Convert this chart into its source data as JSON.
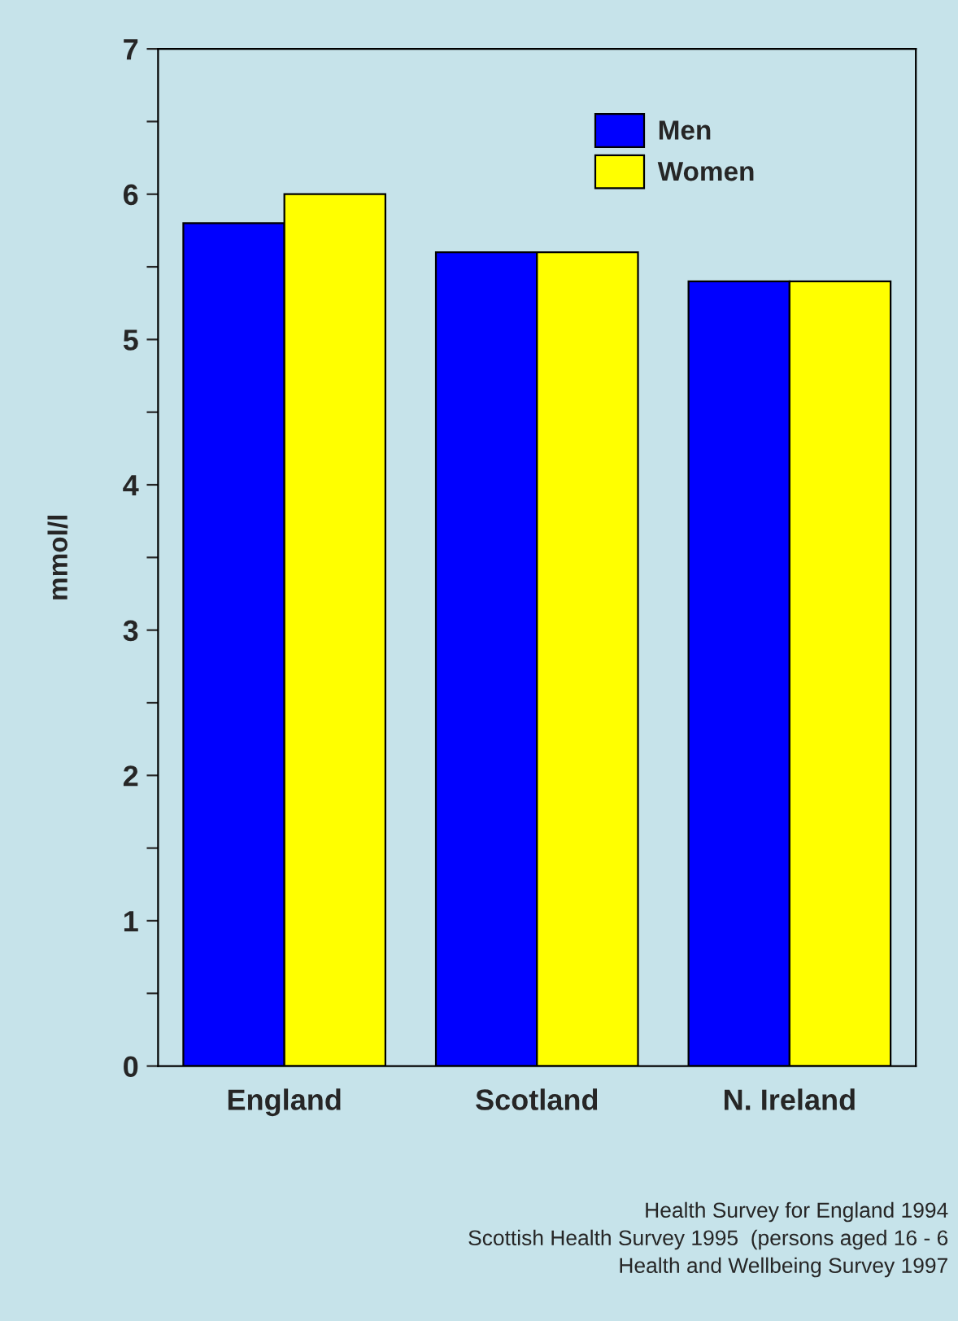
{
  "chart_data": {
    "type": "bar",
    "ylabel": "mmol/l",
    "categories": [
      "England",
      "Scotland",
      "N. Ireland"
    ],
    "series": [
      {
        "name": "Men",
        "color": "#0000ff",
        "values": [
          5.8,
          5.6,
          5.4
        ]
      },
      {
        "name": "Women",
        "color": "#ffff00",
        "values": [
          6.0,
          5.6,
          5.4
        ]
      }
    ],
    "ylim": [
      0,
      7
    ],
    "yticks": [
      0,
      {
        "value": 0.5,
        "label": null
      },
      1,
      {
        "value": 1.5,
        "label": null
      },
      2,
      {
        "value": 2.5,
        "label": null
      },
      3,
      {
        "value": 3.5,
        "label": null
      },
      4,
      {
        "value": 4.5,
        "label": null
      },
      5,
      {
        "value": 5.5,
        "label": null
      },
      6,
      {
        "value": 6.5,
        "label": null
      },
      7
    ],
    "grid": false,
    "legend": "top right",
    "annotations": [
      "Health Survey for England 1994",
      "Scottish Health Survey 1995  (persons aged 16 - 6",
      "Health and Wellbeing Survey 1997"
    ]
  }
}
